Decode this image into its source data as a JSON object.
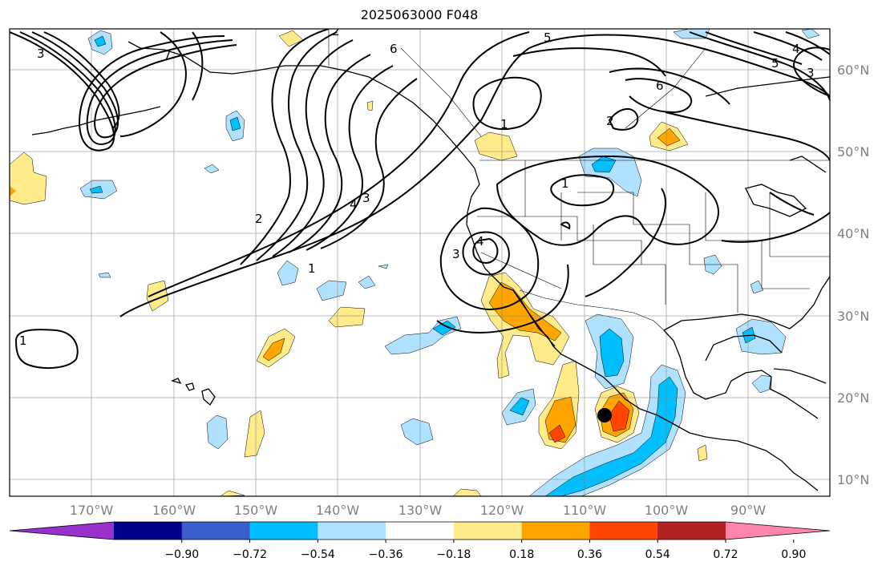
{
  "title": "2025063000 F048",
  "lon_ticks": [
    "170°W",
    "160°W",
    "150°W",
    "140°W",
    "130°W",
    "120°W",
    "110°W",
    "100°W",
    "90°W"
  ],
  "lat_ticks": [
    "60°N",
    "50°N",
    "40°N",
    "30°N",
    "20°N",
    "10°N"
  ],
  "colorbar": {
    "labels": [
      "−0.90",
      "−0.72",
      "−0.54",
      "−0.36",
      "−0.18",
      "0.18",
      "0.36",
      "0.54",
      "0.72",
      "0.90"
    ],
    "colors": [
      "#9932cc",
      "#00008b",
      "#3a5fcd",
      "#00bfff",
      "#b0e2ff",
      "#ffffff",
      "#ffeb8a",
      "#ffa500",
      "#ff4500",
      "#b22222",
      "#ff86a8"
    ]
  },
  "contour_labels": [
    "3",
    "1",
    "5",
    "6",
    "2",
    "4",
    "3",
    "2",
    "1",
    "3",
    "4",
    "1",
    "1",
    "7",
    "2",
    "6",
    "5",
    "4",
    "3"
  ],
  "marker": "storm-center"
}
